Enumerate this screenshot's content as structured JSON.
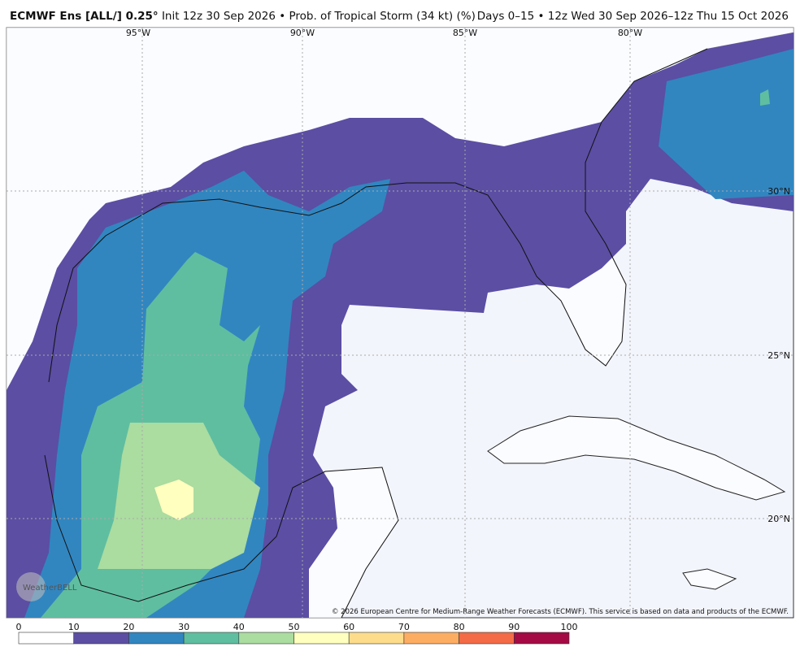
{
  "header": {
    "model": "ECMWF Ens [ALL/] 0.25°",
    "init": "Init 12z 30 Sep 2026",
    "product": "Prob. of Tropical Storm (34 kt) (%)",
    "valid": "Days 0–15 • 12z Wed 30 Sep 2026–12z Thu 15 Oct 2026"
  },
  "map": {
    "lon_labels": [
      "95°W",
      "90°W",
      "85°W",
      "80°W"
    ],
    "lat_labels": [
      "30°N",
      "25°N",
      "20°N"
    ],
    "logo": "WeatherBELL",
    "credit": "© 2026 European Centre for Medium-Range Weather Forecasts (ECMWF). This service is based on data and products of the ECMWF."
  },
  "colorbar": {
    "ticks": [
      0,
      10,
      20,
      30,
      40,
      50,
      60,
      70,
      80,
      90,
      100
    ],
    "colors": [
      "#ffffff",
      "#5b4ea3",
      "#3186c0",
      "#5fbea0",
      "#abdca0",
      "#ffffbf",
      "#fddc8c",
      "#fdad62",
      "#f36b47",
      "#a50a45"
    ]
  }
}
